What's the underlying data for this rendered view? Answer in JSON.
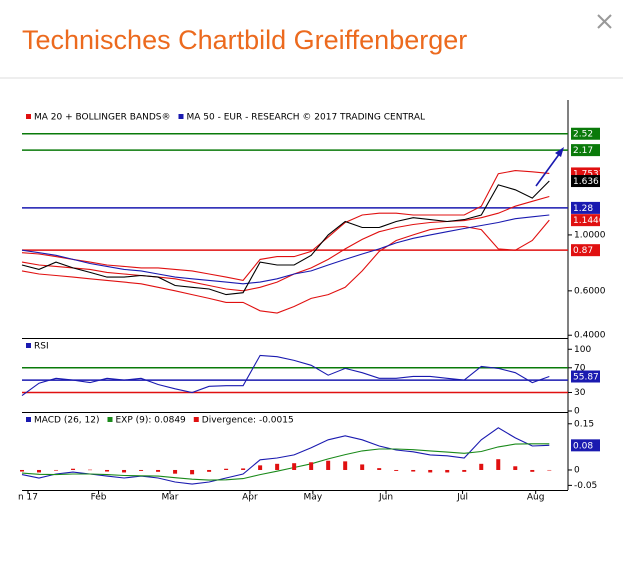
{
  "header": {
    "title": "Technisches Chartbild Greiffenberger"
  },
  "x_axis": {
    "x": [
      0,
      1,
      2,
      3,
      4,
      5,
      6,
      7,
      8,
      9,
      10,
      11,
      12,
      13,
      14,
      15,
      16,
      17,
      18,
      19,
      20,
      21,
      22,
      23,
      24,
      25,
      26,
      27,
      28,
      29,
      30,
      31
    ],
    "xlim": [
      0,
      32.1
    ],
    "xticks": [
      {
        "value": 0.35,
        "label": "n 17"
      },
      {
        "value": 4.5,
        "label": "Feb"
      },
      {
        "value": 8.7,
        "label": "Mar"
      },
      {
        "value": 13.4,
        "label": "Apr"
      },
      {
        "value": 17.1,
        "label": "May"
      },
      {
        "value": 21.4,
        "label": "Jun"
      },
      {
        "value": 25.9,
        "label": "Jul"
      },
      {
        "value": 30.2,
        "label": "Aug"
      }
    ]
  },
  "chart_data": [
    {
      "type": "line",
      "log_scale": true,
      "ylim": [
        0.39,
        3.43
      ],
      "level_labels": true,
      "yticks": [
        {
          "value": 1,
          "label": "1.0000"
        },
        {
          "value": 0.6,
          "label": "0.6000"
        },
        {
          "value": 0.4,
          "label": "0.4000"
        }
      ],
      "levels": [
        {
          "value": 2.52,
          "color": "#0a7a0a"
        },
        {
          "value": 2.17,
          "color": "#0a7a0a"
        },
        {
          "value": 1.28,
          "color": "#1a1ab0"
        },
        {
          "value": 0.87,
          "color": "#e01010"
        }
      ],
      "series": [
        {
          "name": "MA 20 + BOLLINGER BANDS®",
          "color": "#e01010",
          "values": [
            0.78,
            0.76,
            0.75,
            0.74,
            0.73,
            0.71,
            0.7,
            0.69,
            0.68,
            0.67,
            0.65,
            0.63,
            0.61,
            0.6,
            0.62,
            0.65,
            0.7,
            0.74,
            0.8,
            0.88,
            0.96,
            1.03,
            1.07,
            1.1,
            1.12,
            1.13,
            1.14,
            1.17,
            1.22,
            1.3,
            1.36,
            1.42
          ]
        },
        {
          "color": "#e01010",
          "end_label": true,
          "values": [
            0.85,
            0.84,
            0.82,
            0.8,
            0.78,
            0.76,
            0.75,
            0.74,
            0.74,
            0.73,
            0.72,
            0.7,
            0.68,
            0.66,
            0.8,
            0.82,
            0.82,
            0.86,
            0.98,
            1.12,
            1.2,
            1.22,
            1.22,
            1.2,
            1.2,
            1.2,
            1.2,
            1.3,
            1.75,
            1.8,
            1.78,
            1.7537
          ]
        },
        {
          "color": "#e01010",
          "end_label": true,
          "values": [
            0.72,
            0.7,
            0.69,
            0.68,
            0.67,
            0.66,
            0.65,
            0.64,
            0.62,
            0.6,
            0.58,
            0.56,
            0.54,
            0.54,
            0.5,
            0.49,
            0.52,
            0.56,
            0.58,
            0.62,
            0.72,
            0.86,
            0.95,
            1.0,
            1.05,
            1.07,
            1.08,
            1.05,
            0.88,
            0.87,
            0.95,
            1.1446
          ]
        },
        {
          "name": "MA 50 - EUR - RESEARCH © 2017 TRADING CENTRAL",
          "color": "#1a1ab0",
          "values": [
            0.87,
            0.85,
            0.83,
            0.8,
            0.77,
            0.75,
            0.73,
            0.72,
            0.7,
            0.68,
            0.67,
            0.66,
            0.65,
            0.64,
            0.65,
            0.67,
            0.7,
            0.72,
            0.76,
            0.8,
            0.84,
            0.88,
            0.93,
            0.97,
            1.0,
            1.03,
            1.06,
            1.09,
            1.12,
            1.16,
            1.18,
            1.2
          ]
        },
        {
          "color": "#000000",
          "end_label": true,
          "values": [
            0.76,
            0.73,
            0.78,
            0.74,
            0.71,
            0.68,
            0.68,
            0.69,
            0.68,
            0.63,
            0.62,
            0.61,
            0.58,
            0.59,
            0.78,
            0.76,
            0.76,
            0.83,
            1.0,
            1.13,
            1.07,
            1.07,
            1.13,
            1.17,
            1.15,
            1.13,
            1.15,
            1.2,
            1.58,
            1.51,
            1.4,
            1.636
          ]
        }
      ]
    },
    {
      "type": "line",
      "ylim": [
        0,
        115
      ],
      "yticks": [
        100,
        70,
        30,
        0
      ],
      "levels": [
        {
          "value": 70,
          "color": "#0a7a0a"
        },
        {
          "value": 50,
          "color": "#1a1ab0"
        },
        {
          "value": 30,
          "color": "#e01010"
        }
      ],
      "series": [
        {
          "name": "RSI",
          "color": "#1a1ab0",
          "end_label": true,
          "values": [
            25,
            45,
            53,
            50,
            46,
            53,
            50,
            53,
            43,
            36,
            30,
            40,
            41,
            41,
            90,
            88,
            82,
            74,
            58,
            69,
            62,
            53,
            53,
            56,
            56,
            53,
            50,
            72,
            69,
            62,
            46,
            55.87
          ]
        }
      ]
    },
    {
      "type": "line",
      "ylim": [
        -0.065,
        0.185
      ],
      "yticks": [
        0.15,
        0,
        -0.05
      ],
      "levels": [],
      "series": [
        {
          "name": "MACD (26, 12)",
          "color": "#1a1ab0",
          "end_label": true,
          "values": [
            -0.015,
            -0.026,
            -0.013,
            -0.007,
            -0.013,
            -0.02,
            -0.026,
            -0.02,
            -0.026,
            -0.039,
            -0.046,
            -0.039,
            -0.026,
            -0.013,
            0.033,
            0.039,
            0.049,
            0.072,
            0.098,
            0.111,
            0.098,
            0.078,
            0.065,
            0.059,
            0.049,
            0.046,
            0.039,
            0.098,
            0.137,
            0.104,
            0.078,
            0.08
          ]
        },
        {
          "name": "EXP (9): 0.0849",
          "color": "#1a8a1a",
          "values": [
            -0.01,
            -0.014,
            -0.015,
            -0.013,
            -0.013,
            -0.015,
            -0.018,
            -0.019,
            -0.02,
            -0.025,
            -0.03,
            -0.033,
            -0.032,
            -0.028,
            -0.015,
            -0.004,
            0.008,
            0.02,
            0.036,
            0.05,
            0.062,
            0.068,
            0.068,
            0.066,
            0.062,
            0.058,
            0.054,
            0.06,
            0.075,
            0.084,
            0.085,
            0.0849
          ]
        },
        {
          "name": "Divergence: -0.0015",
          "color": "#e01010",
          "kind": "bar",
          "values": [
            -0.005,
            -0.008,
            -0.002,
            0.004,
            0.001,
            -0.005,
            -0.008,
            -0.003,
            -0.006,
            -0.012,
            -0.014,
            -0.006,
            0.004,
            0.005,
            0.015,
            0.02,
            0.022,
            0.025,
            0.03,
            0.028,
            0.018,
            0.006,
            -0.003,
            -0.005,
            -0.008,
            -0.008,
            -0.006,
            0.02,
            0.035,
            0.012,
            -0.006,
            -0.0015
          ]
        }
      ]
    }
  ]
}
